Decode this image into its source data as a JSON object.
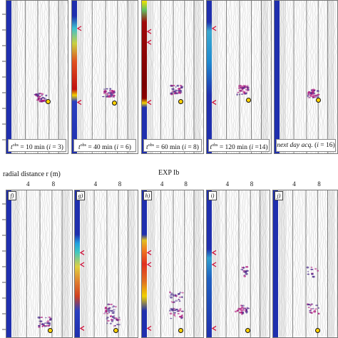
{
  "top_captions": [
    {
      "prefix": "t",
      "sup": "obs",
      "value": " = 10 min (",
      "idx": "i",
      "rest": " = 3)"
    },
    {
      "prefix": "t",
      "sup": "obs",
      "value": " = 40 min (",
      "idx": "i",
      "rest": " = 6)"
    },
    {
      "prefix": "t",
      "sup": "obs",
      "value": " = 60 min (",
      "idx": "i",
      "rest": " = 8)"
    },
    {
      "prefix": "t",
      "sup": "obs",
      "value": " = 120 min (",
      "idx": "i",
      "rest": " =14)"
    },
    {
      "prefix": "next day acq.",
      "sup": "",
      "value": " (",
      "idx": "i",
      "rest": " = 16)"
    }
  ],
  "axis_label": "radial distance r (m)",
  "experiment_label": "EXP Ib",
  "tick_labels": [
    "4",
    "8"
  ],
  "panel_letters": [
    "f)",
    "g)",
    "h)",
    "i)",
    "j)"
  ],
  "colors": {
    "blue": "#1f2fae",
    "arrow_red": "#d0103a",
    "wiggle": "#8a8a8a",
    "anomaly": "#b0107a",
    "marker": "#ffd200"
  }
}
